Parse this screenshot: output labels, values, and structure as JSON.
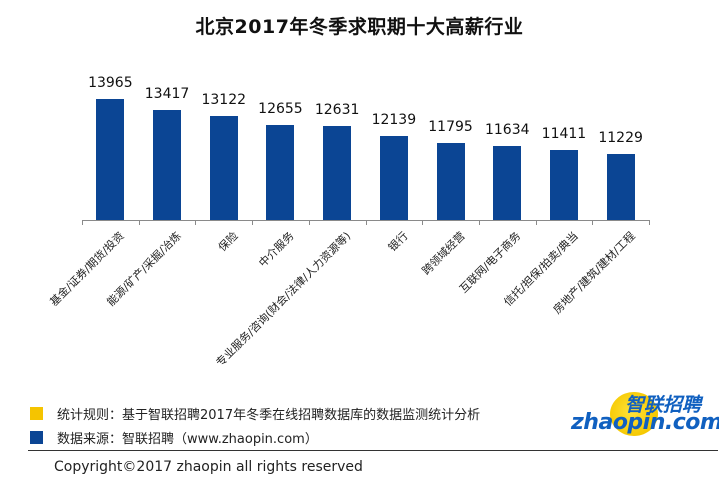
{
  "title": "北京2017年冬季求职期十大高薪行业",
  "chart_data": {
    "type": "bar",
    "title": "北京2017年冬季求职期十大高薪行业",
    "xlabel": "",
    "ylabel": "",
    "categories": [
      "基金/证券/期货/投资",
      "能源/矿产/采掘/冶炼",
      "保险",
      "中介服务",
      "专业服务/咨询(财会/法律/人力资源等)",
      "银行",
      "跨领域经营",
      "互联网/电子商务",
      "信托/担保/拍卖/典当",
      "房地产/建筑/建材/工程"
    ],
    "values": [
      13965,
      13417,
      13122,
      12655,
      12631,
      12139,
      11795,
      11634,
      11411,
      11229
    ],
    "data_labels": [
      "13965",
      "13417",
      "13122",
      "12655",
      "12631",
      "12139",
      "11795",
      "11634",
      "11411",
      "11229"
    ],
    "grid": false,
    "bar_color": "#0b4594",
    "ylim": [
      0,
      14500
    ]
  },
  "legend": {
    "items": [
      {
        "color": "#f5c400",
        "label": "统计规则：基于智联招聘2017年冬季在线招聘数据库的数据监测统计分析"
      },
      {
        "color": "#0b4594",
        "label": "数据来源：智联招聘（www.zhaopin.com）"
      }
    ]
  },
  "logo": {
    "cn": "智联招聘",
    "en": "zhaopin.com"
  },
  "footer": {
    "copyright": "Copyright©2017 zhaopin all rights reserved"
  }
}
